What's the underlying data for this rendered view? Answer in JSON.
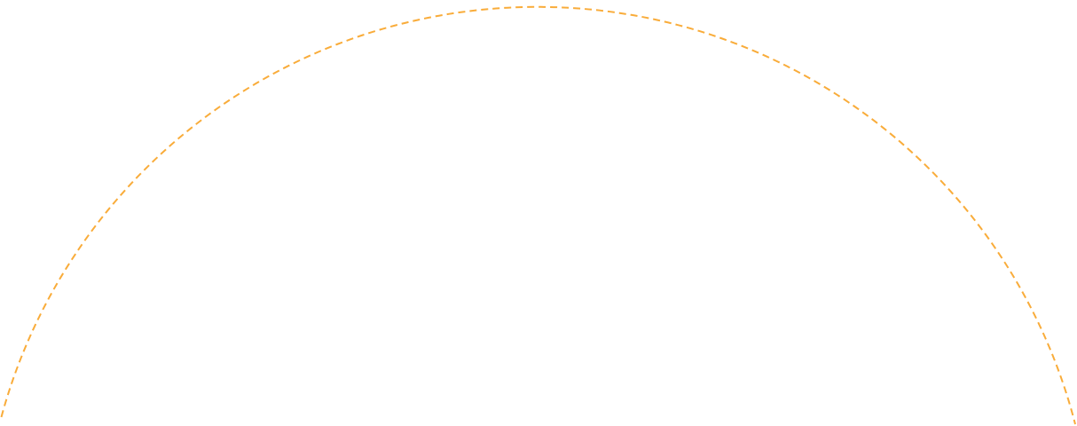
{
  "arc": {
    "stroke_color": "#F9AC3A",
    "style": "dashed"
  }
}
